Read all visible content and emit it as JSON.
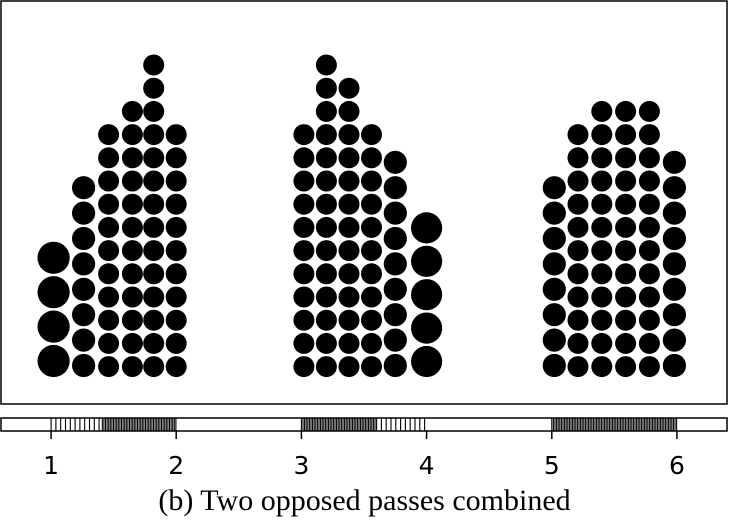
{
  "chart_data": {
    "type": "scatter",
    "title": "",
    "caption": "(b)  Two opposed passes combined",
    "xlabel": "",
    "ylabel": "",
    "xlim": [
      0.6,
      6.4
    ],
    "xticks": [
      1,
      2,
      3,
      4,
      5,
      6
    ],
    "xtick_labels": [
      "1",
      "2",
      "3",
      "4",
      "5",
      "6"
    ],
    "grid": false,
    "legend": "none",
    "dot_color": "#000000",
    "description_of_encoding": "",
    "columns": [
      {
        "x": 1.02,
        "count": 4
      },
      {
        "x": 1.26,
        "count": 8
      },
      {
        "x": 1.46,
        "count": 11
      },
      {
        "x": 1.65,
        "count": 12
      },
      {
        "x": 1.82,
        "count": 14
      },
      {
        "x": 2.0,
        "count": 11
      },
      {
        "x": 3.02,
        "count": 11
      },
      {
        "x": 3.2,
        "count": 14
      },
      {
        "x": 3.38,
        "count": 13
      },
      {
        "x": 3.56,
        "count": 11
      },
      {
        "x": 3.75,
        "count": 9
      },
      {
        "x": 4.0,
        "count": 5
      },
      {
        "x": 5.02,
        "count": 8
      },
      {
        "x": 5.21,
        "count": 11
      },
      {
        "x": 5.4,
        "count": 12
      },
      {
        "x": 5.59,
        "count": 12
      },
      {
        "x": 5.78,
        "count": 12
      },
      {
        "x": 5.98,
        "count": 9
      }
    ],
    "rug_segments": [
      {
        "from": 1.0,
        "to": 2.0,
        "sparse_until": 1.4
      },
      {
        "from": 3.0,
        "to": 4.0,
        "sparse_from": 3.6
      },
      {
        "from": 5.0,
        "to": 6.0
      }
    ]
  }
}
